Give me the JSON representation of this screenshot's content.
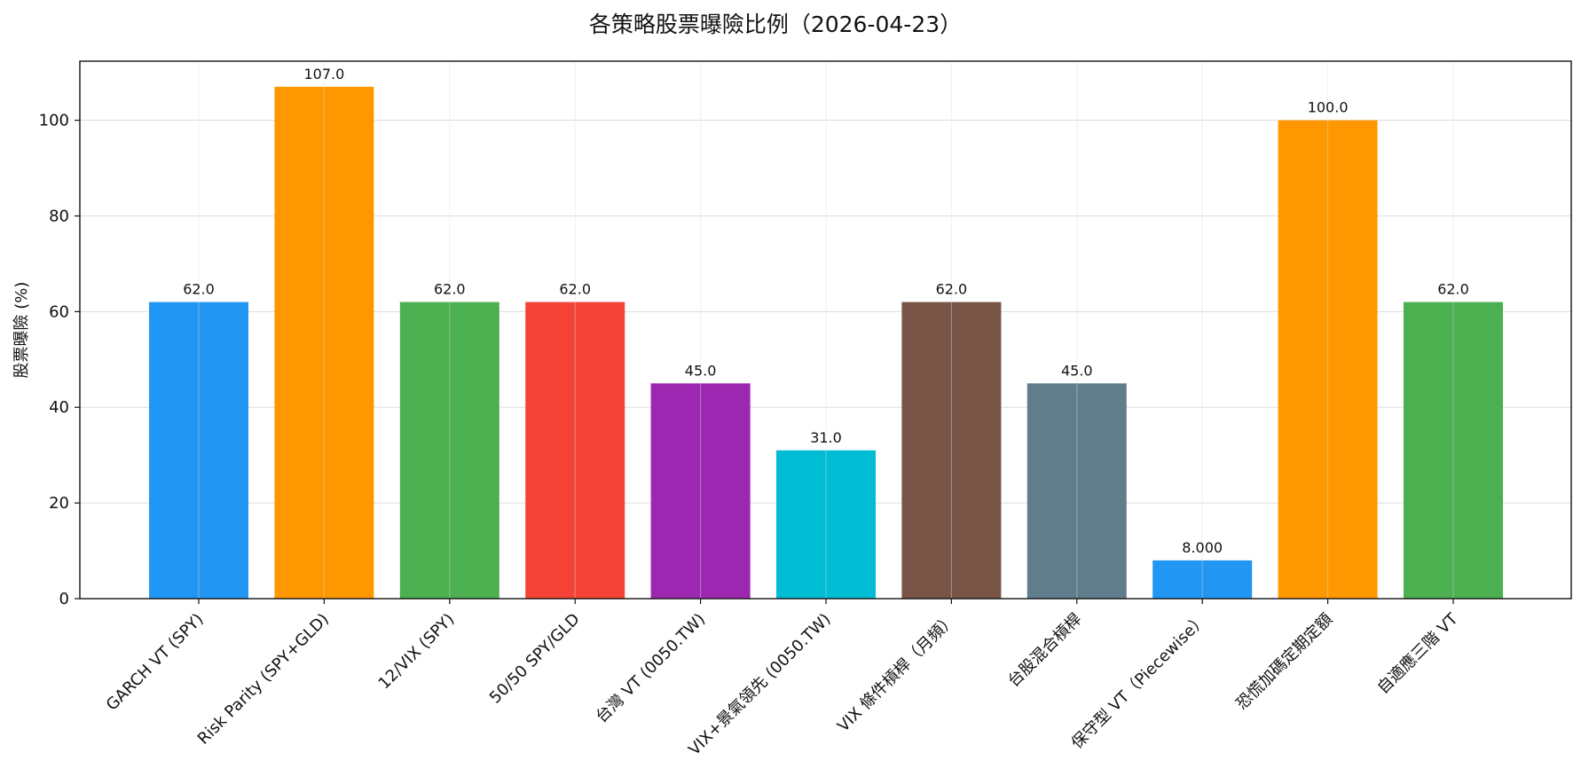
{
  "chart_data": {
    "type": "bar",
    "title": "各策略股票曝險比例（2026-04-23）",
    "xlabel": "",
    "ylabel": "股票曝險 (%)",
    "ylim": [
      0,
      112.35
    ],
    "yticks": [
      0,
      20,
      40,
      60,
      80,
      100
    ],
    "grid": true,
    "categories": [
      "GARCH VT (SPY)",
      "Risk Parity (SPY+GLD)",
      "12/VIX (SPY)",
      "50/50 SPY/GLD",
      "台灣 VT (0050.TW)",
      "VIX+景氣領先 (0050.TW)",
      "VIX 條件槓桿（月頻）",
      "台股混合槓桿",
      "保守型 VT（Piecewise）",
      "恐慌加碼定期定額",
      "自適應三階 VT"
    ],
    "values": [
      62.0,
      107.0,
      62.0,
      62.0,
      45.0,
      31.0,
      62.0,
      45.0,
      8.0,
      100.0,
      62.0
    ],
    "value_labels": [
      "62.0",
      "107.0",
      "62.0",
      "62.0",
      "45.0",
      "31.0",
      "62.0",
      "45.0",
      "8.000",
      "100.0",
      "62.0"
    ],
    "colors": [
      "#2196F3",
      "#FF9800",
      "#4CAF50",
      "#F44336",
      "#9C27B0",
      "#00BCD4",
      "#795548",
      "#607D8B",
      "#2196F3",
      "#FF9800",
      "#4CAF50"
    ]
  }
}
